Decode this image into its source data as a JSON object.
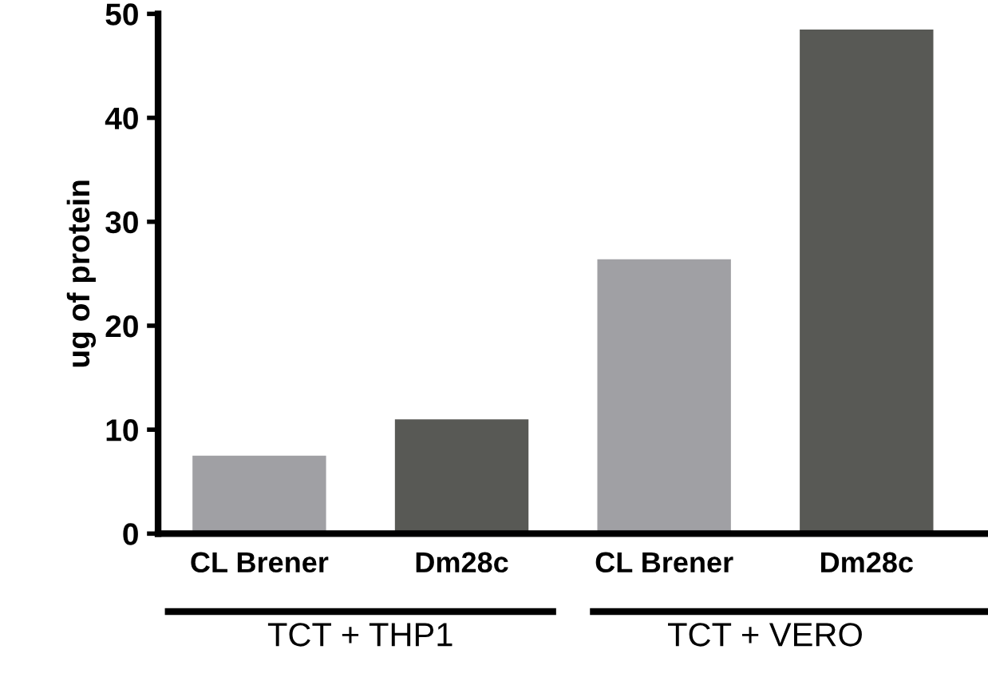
{
  "chart_data": {
    "type": "bar",
    "ylabel": "ug of protein",
    "categories": [
      "CL Brener",
      "Dm28c",
      "CL Brener",
      "Dm28c"
    ],
    "values": [
      7.5,
      11.0,
      26.4,
      48.5
    ],
    "colors": [
      "#a0a0a4",
      "#585955",
      "#a0a0a4",
      "#585955"
    ],
    "ylim": [
      0,
      50
    ],
    "yticks": [
      0,
      10,
      20,
      30,
      40,
      50
    ],
    "grid": false,
    "annotations": [
      "TCT + THP1",
      "TCT + VERO"
    ]
  }
}
